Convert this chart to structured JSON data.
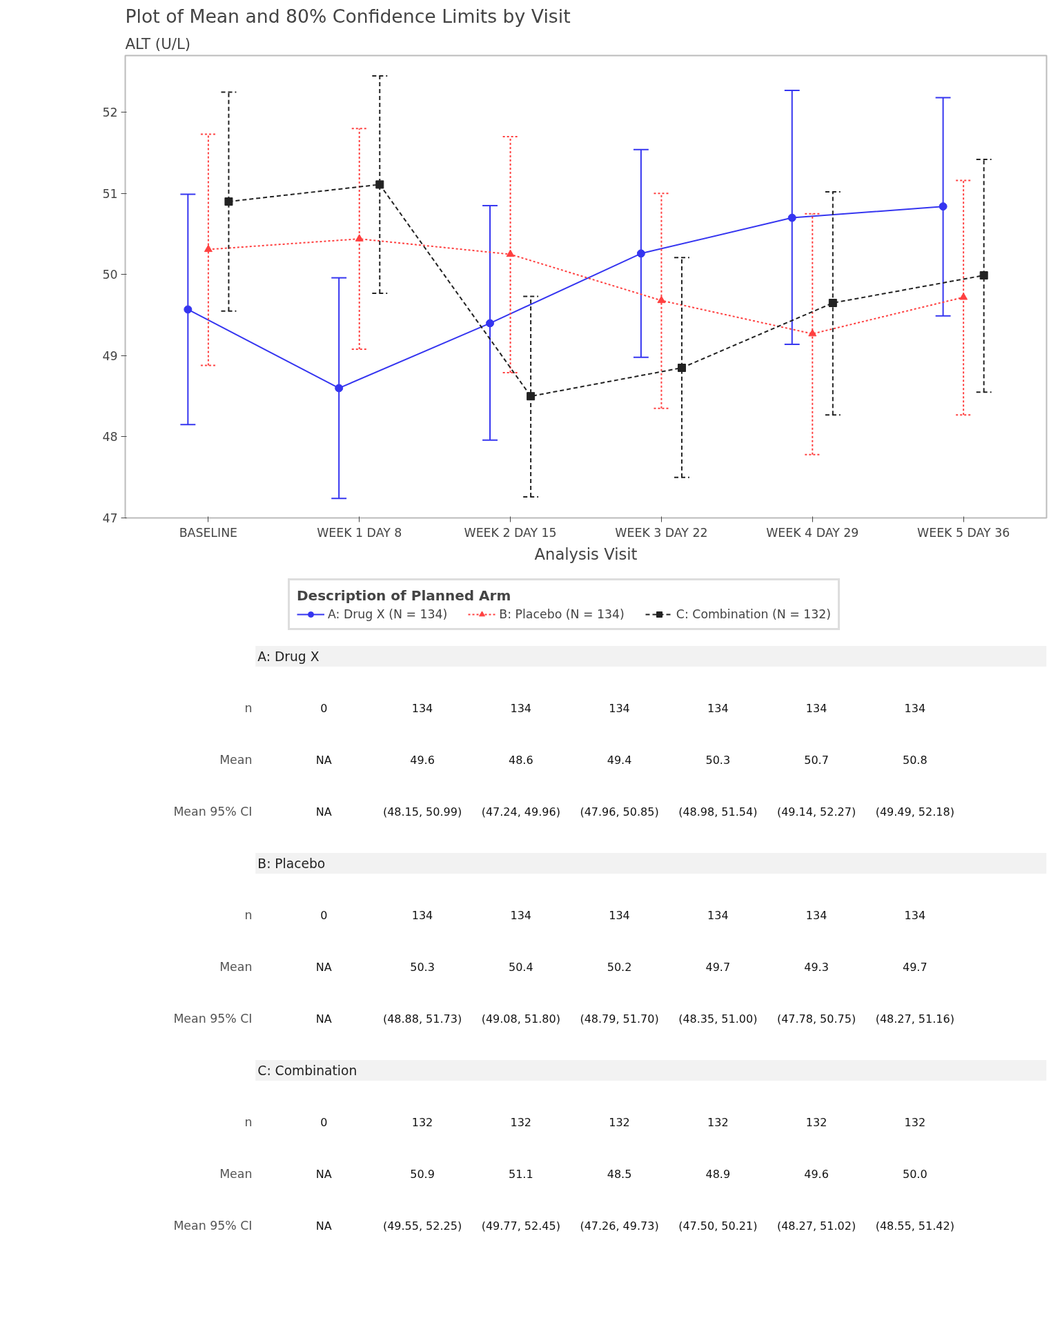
{
  "chart_data": [
    {
      "type": "line",
      "title": "Plot of Mean and 80% Confidence Limits by Visit",
      "subtitle": "ALT (U/L)",
      "xlabel": "Analysis Visit",
      "legend_title": "Description of Planned Arm",
      "categories": [
        "BASELINE",
        "WEEK 1 DAY 8",
        "WEEK 2 DAY 15",
        "WEEK 3 DAY 22",
        "WEEK 4 DAY 29",
        "WEEK 5 DAY 36"
      ],
      "series": [
        {
          "name": "A: Drug X (N = 134)",
          "color": "#3535f0",
          "marker": "circle",
          "line_style": "solid",
          "values": [
            49.57,
            48.6,
            49.4,
            50.26,
            50.7,
            50.84
          ],
          "errors": [
            [
              48.15,
              50.99
            ],
            [
              47.24,
              49.96
            ],
            [
              47.96,
              50.85
            ],
            [
              48.98,
              51.54
            ],
            [
              49.14,
              52.27
            ],
            [
              49.49,
              52.18
            ]
          ]
        },
        {
          "name": "B: Placebo (N = 134)",
          "color": "#ff4040",
          "marker": "triangle",
          "line_style": "dotted",
          "values": [
            50.31,
            50.44,
            50.25,
            49.68,
            49.27,
            49.72
          ],
          "errors": [
            [
              48.88,
              51.73
            ],
            [
              49.08,
              51.8
            ],
            [
              48.79,
              51.7
            ],
            [
              48.35,
              51.0
            ],
            [
              47.78,
              50.75
            ],
            [
              48.27,
              51.16
            ]
          ]
        },
        {
          "name": "C: Combination (N = 132)",
          "color": "#222222",
          "marker": "square",
          "line_style": "dashed",
          "values": [
            50.9,
            51.11,
            48.5,
            48.85,
            49.65,
            49.99
          ],
          "errors": [
            [
              49.55,
              52.25
            ],
            [
              49.77,
              52.45
            ],
            [
              47.26,
              49.73
            ],
            [
              47.5,
              50.21
            ],
            [
              48.27,
              51.02
            ],
            [
              48.55,
              51.42
            ]
          ]
        }
      ],
      "ylim": [
        47,
        52.7
      ],
      "yticks": [
        47,
        48,
        49,
        50,
        51,
        52
      ],
      "grid": false,
      "legend": "bottom"
    },
    {
      "type": "other",
      "annotations": [
        "A: Drug X",
        "n",
        "0",
        "134",
        "134",
        "134",
        "134",
        "134",
        "134",
        "Mean",
        "NA",
        "49.6",
        "48.6",
        "49.4",
        "50.3",
        "50.7",
        "50.8",
        "Mean 95% CI",
        "NA",
        "(48.15, 50.99)",
        "(47.24, 49.96)",
        "(47.96, 50.85)",
        "(48.98, 51.54)",
        "(49.14, 52.27)",
        "(49.49, 52.18)",
        "B: Placebo",
        "n",
        "0",
        "134",
        "134",
        "134",
        "134",
        "134",
        "134",
        "Mean",
        "NA",
        "50.3",
        "50.4",
        "50.2",
        "49.7",
        "49.3",
        "49.7",
        "Mean 95% CI",
        "NA",
        "(48.88, 51.73)",
        "(49.08, 51.80)",
        "(48.79, 51.70)",
        "(48.35, 51.00)",
        "(47.78, 50.75)",
        "(48.27, 51.16)",
        "C: Combination",
        "n",
        "0",
        "132",
        "132",
        "132",
        "132",
        "132",
        "132",
        "Mean",
        "NA",
        "50.9",
        "51.1",
        "48.5",
        "48.9",
        "49.6",
        "50.0",
        "Mean 95% CI",
        "NA",
        "(49.55, 52.25)",
        "(49.77, 52.45)",
        "(47.26, 49.73)",
        "(47.50, 50.21)",
        "(48.27, 51.02)",
        "(48.55, 51.42)"
      ]
    }
  ]
}
